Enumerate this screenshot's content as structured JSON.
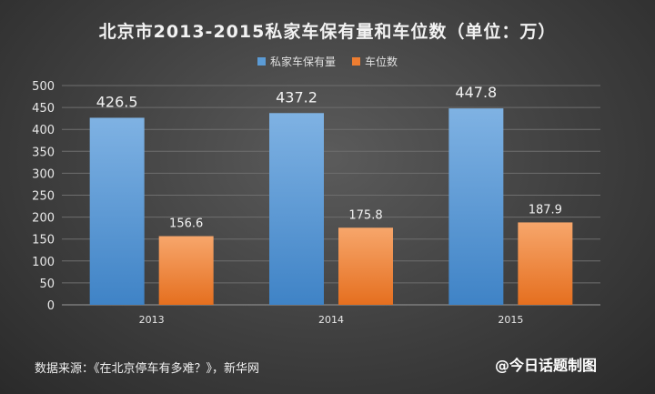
{
  "title": "北京市2013-2015私家车保有量和车位数（单位：万）",
  "source": "数据来源：《在北京停车有多难？》，新华网",
  "watermark": "@今日话题制图",
  "colors": {
    "series1": "#5b9bd5",
    "series2": "#ed7d31"
  },
  "chart_data": {
    "type": "bar",
    "categories": [
      "2013",
      "2014",
      "2015"
    ],
    "series": [
      {
        "name": "私家车保有量",
        "values": [
          426.5,
          437.2,
          447.8
        ],
        "labels": [
          "426.5",
          "437.2",
          "447.8"
        ]
      },
      {
        "name": "车位数",
        "values": [
          156.6,
          175.8,
          187.9
        ],
        "labels": [
          "156.6",
          "175.8",
          "187.9"
        ]
      }
    ],
    "ylim": [
      0,
      500
    ],
    "yticks": [
      0,
      50,
      100,
      150,
      200,
      250,
      300,
      350,
      400,
      450,
      500
    ],
    "grid": true,
    "legend": "top-center"
  }
}
